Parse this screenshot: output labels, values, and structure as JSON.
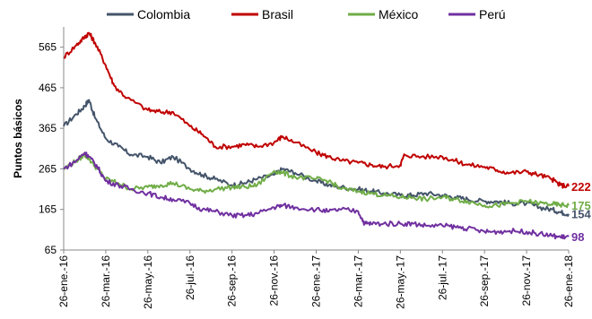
{
  "chart_data": {
    "type": "line",
    "title": "",
    "xlabel": "",
    "ylabel": "Puntos básicos",
    "ylim": [
      65,
      615
    ],
    "yticks": [
      65,
      165,
      265,
      365,
      465,
      565
    ],
    "x_tick_labels": [
      "26-ene.-16",
      "26-mar.-16",
      "26-may.-16",
      "26-jul.-16",
      "26-sep.-16",
      "26-nov.-16",
      "26-ene.-17",
      "26-mar.-17",
      "26-may.-17",
      "26-jul.-17",
      "26-sep.-17",
      "26-nov.-17",
      "26-ene.-18"
    ],
    "grid": false,
    "legend_position": "top",
    "series": [
      {
        "name": "Colombia",
        "color": "#44546A",
        "end_label": "154",
        "values": [
          [
            0,
            370
          ],
          [
            0.3,
            400
          ],
          [
            0.5,
            420
          ],
          [
            0.6,
            435
          ],
          [
            0.75,
            390
          ],
          [
            1,
            340
          ],
          [
            1.3,
            320
          ],
          [
            1.6,
            300
          ],
          [
            2,
            295
          ],
          [
            2.3,
            280
          ],
          [
            2.6,
            295
          ],
          [
            3,
            265
          ],
          [
            3.3,
            250
          ],
          [
            3.6,
            240
          ],
          [
            4,
            225
          ],
          [
            4.3,
            230
          ],
          [
            4.6,
            240
          ],
          [
            5,
            250
          ],
          [
            5.2,
            265
          ],
          [
            5.5,
            255
          ],
          [
            6,
            235
          ],
          [
            6.3,
            225
          ],
          [
            6.6,
            220
          ],
          [
            7,
            215
          ],
          [
            7.3,
            210
          ],
          [
            7.6,
            205
          ],
          [
            8,
            200
          ],
          [
            8.3,
            200
          ],
          [
            8.6,
            205
          ],
          [
            9,
            200
          ],
          [
            9.3,
            195
          ],
          [
            9.6,
            190
          ],
          [
            10,
            185
          ],
          [
            10.3,
            185
          ],
          [
            10.6,
            180
          ],
          [
            11,
            180
          ],
          [
            11.3,
            170
          ],
          [
            11.6,
            165
          ],
          [
            11.8,
            158
          ],
          [
            12,
            154
          ]
        ]
      },
      {
        "name": "Brasil",
        "color": "#C00000",
        "end_label": "222",
        "values": [
          [
            0,
            540
          ],
          [
            0.3,
            570
          ],
          [
            0.5,
            590
          ],
          [
            0.6,
            600
          ],
          [
            0.75,
            575
          ],
          [
            1,
            520
          ],
          [
            1.2,
            470
          ],
          [
            1.5,
            440
          ],
          [
            2,
            410
          ],
          [
            2.3,
            405
          ],
          [
            2.6,
            405
          ],
          [
            3,
            370
          ],
          [
            3.3,
            350
          ],
          [
            3.6,
            320
          ],
          [
            4,
            320
          ],
          [
            4.3,
            325
          ],
          [
            4.6,
            320
          ],
          [
            5,
            330
          ],
          [
            5.2,
            345
          ],
          [
            5.5,
            330
          ],
          [
            6,
            305
          ],
          [
            6.3,
            295
          ],
          [
            6.6,
            285
          ],
          [
            7,
            280
          ],
          [
            7.3,
            275
          ],
          [
            7.6,
            270
          ],
          [
            8,
            275
          ],
          [
            8.1,
            300
          ],
          [
            8.5,
            295
          ],
          [
            9,
            295
          ],
          [
            9.3,
            285
          ],
          [
            9.6,
            275
          ],
          [
            10,
            270
          ],
          [
            10.3,
            262
          ],
          [
            10.6,
            255
          ],
          [
            11,
            258
          ],
          [
            11.3,
            250
          ],
          [
            11.6,
            240
          ],
          [
            11.8,
            225
          ],
          [
            12,
            222
          ]
        ]
      },
      {
        "name": "México",
        "color": "#70AD47",
        "end_label": "175",
        "values": [
          [
            0,
            265
          ],
          [
            0.3,
            285
          ],
          [
            0.5,
            300
          ],
          [
            0.6,
            290
          ],
          [
            0.8,
            265
          ],
          [
            1,
            240
          ],
          [
            1.3,
            230
          ],
          [
            1.6,
            215
          ],
          [
            2,
            220
          ],
          [
            2.3,
            225
          ],
          [
            2.6,
            230
          ],
          [
            3,
            215
          ],
          [
            3.3,
            210
          ],
          [
            3.6,
            215
          ],
          [
            4,
            220
          ],
          [
            4.3,
            220
          ],
          [
            4.6,
            225
          ],
          [
            5,
            260
          ],
          [
            5.2,
            255
          ],
          [
            5.5,
            245
          ],
          [
            6,
            240
          ],
          [
            6.3,
            235
          ],
          [
            6.6,
            215
          ],
          [
            7,
            210
          ],
          [
            7.3,
            205
          ],
          [
            7.6,
            200
          ],
          [
            8,
            195
          ],
          [
            8.3,
            195
          ],
          [
            8.6,
            190
          ],
          [
            9,
            195
          ],
          [
            9.3,
            190
          ],
          [
            9.6,
            185
          ],
          [
            10,
            175
          ],
          [
            10.3,
            175
          ],
          [
            10.6,
            180
          ],
          [
            11,
            185
          ],
          [
            11.3,
            180
          ],
          [
            11.6,
            178
          ],
          [
            11.8,
            176
          ],
          [
            12,
            175
          ]
        ]
      },
      {
        "name": "Perú",
        "color": "#7030A0",
        "end_label": "98",
        "values": [
          [
            0,
            265
          ],
          [
            0.3,
            285
          ],
          [
            0.5,
            305
          ],
          [
            0.6,
            295
          ],
          [
            0.8,
            270
          ],
          [
            1,
            235
          ],
          [
            1.3,
            225
          ],
          [
            1.6,
            215
          ],
          [
            2,
            205
          ],
          [
            2.3,
            195
          ],
          [
            2.6,
            190
          ],
          [
            3,
            180
          ],
          [
            3.3,
            165
          ],
          [
            3.6,
            160
          ],
          [
            4,
            150
          ],
          [
            4.3,
            150
          ],
          [
            4.6,
            155
          ],
          [
            5,
            170
          ],
          [
            5.2,
            175
          ],
          [
            5.5,
            170
          ],
          [
            6,
            165
          ],
          [
            6.3,
            160
          ],
          [
            6.6,
            165
          ],
          [
            7,
            160
          ],
          [
            7.15,
            130
          ],
          [
            7.3,
            130
          ],
          [
            7.6,
            130
          ],
          [
            8,
            130
          ],
          [
            8.3,
            130
          ],
          [
            8.6,
            125
          ],
          [
            9,
            125
          ],
          [
            9.3,
            122
          ],
          [
            9.6,
            118
          ],
          [
            10,
            110
          ],
          [
            10.3,
            110
          ],
          [
            10.6,
            112
          ],
          [
            11,
            110
          ],
          [
            11.3,
            105
          ],
          [
            11.6,
            100
          ],
          [
            11.8,
            97
          ],
          [
            12,
            98
          ]
        ]
      }
    ]
  }
}
